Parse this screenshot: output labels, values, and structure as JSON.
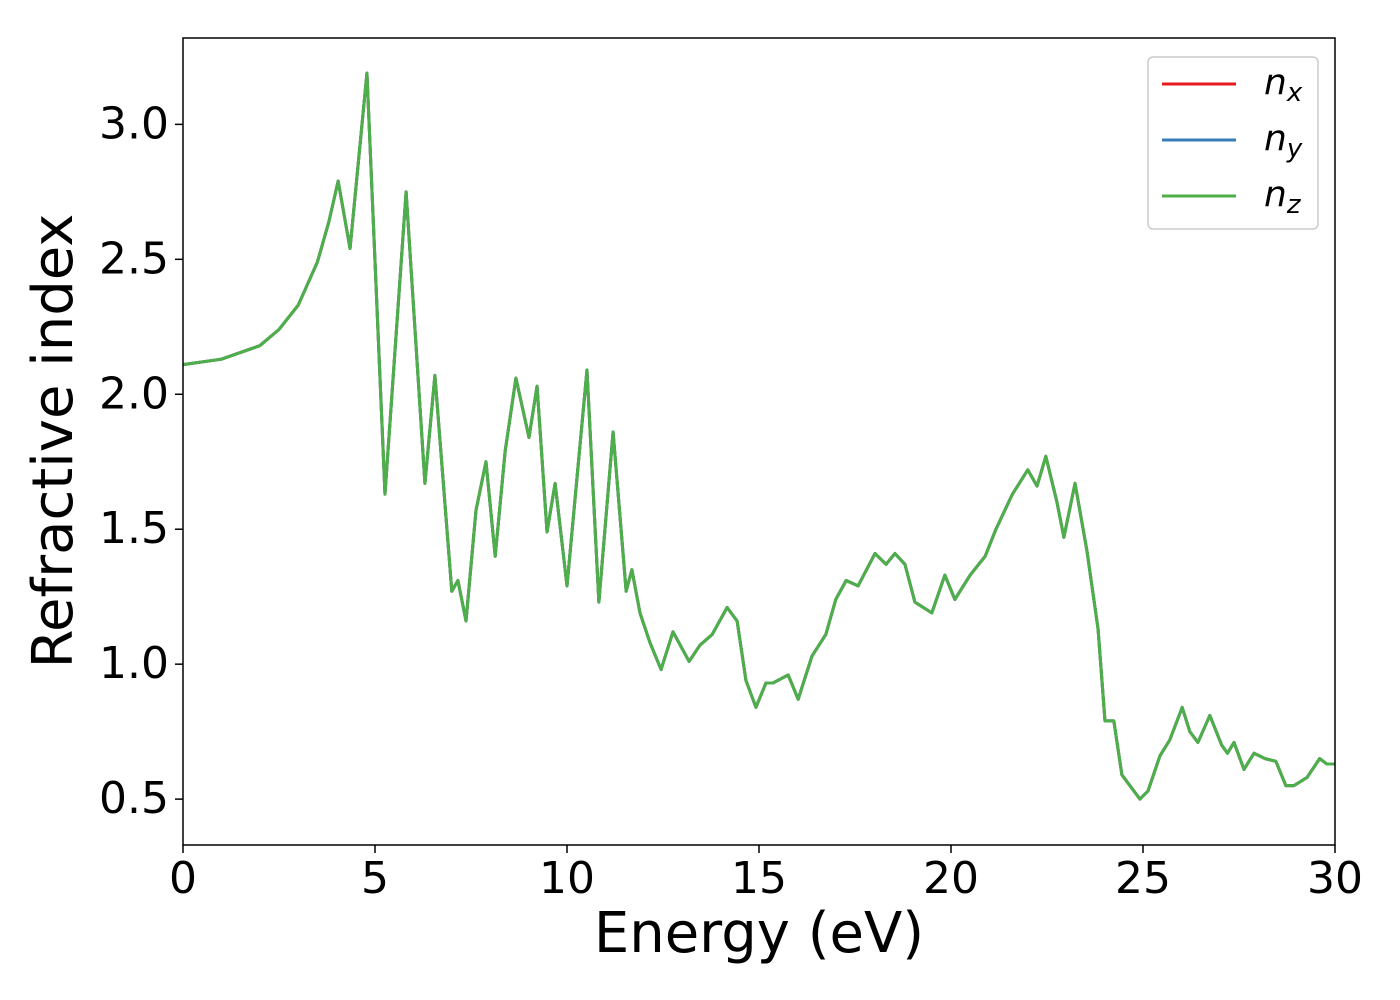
{
  "chart_data": {
    "type": "line",
    "xlabel": "Energy (eV)",
    "ylabel": "Refractive index",
    "x": [
      0,
      1,
      2,
      2.5,
      3,
      3.5,
      3.8,
      4.04,
      4.35,
      4.79,
      5.26,
      5.81,
      6.3,
      6.56,
      7.0,
      7.16,
      7.37,
      7.63,
      7.89,
      8.13,
      8.39,
      8.67,
      9.01,
      9.22,
      9.48,
      9.69,
      10.0,
      10.52,
      10.83,
      11.2,
      11.54,
      11.69,
      11.9,
      12.16,
      12.45,
      12.76,
      13.18,
      13.46,
      13.78,
      14.17,
      14.43,
      14.66,
      14.92,
      15.18,
      15.36,
      15.76,
      16.02,
      16.38,
      16.74,
      17.0,
      17.27,
      17.58,
      18.02,
      18.31,
      18.54,
      18.8,
      19.06,
      19.5,
      19.84,
      20.1,
      20.5,
      20.89,
      21.17,
      21.6,
      22.0,
      22.24,
      22.47,
      22.76,
      22.94,
      23.23,
      23.54,
      23.83,
      24.01,
      24.24,
      24.45,
      24.92,
      25.13,
      25.44,
      25.7,
      26.02,
      26.22,
      26.43,
      26.74,
      27.05,
      27.2,
      27.37,
      27.63,
      27.89,
      28.18,
      28.46,
      28.72,
      28.93,
      29.27,
      29.6,
      29.79,
      30
    ],
    "series": [
      {
        "name": "nx",
        "color": "#e41a1c",
        "values": [
          2.11,
          2.13,
          2.18,
          2.24,
          2.33,
          2.49,
          2.64,
          2.79,
          2.54,
          3.19,
          1.63,
          2.75,
          1.67,
          2.07,
          1.27,
          1.31,
          1.16,
          1.57,
          1.75,
          1.4,
          1.79,
          2.06,
          1.84,
          2.03,
          1.49,
          1.67,
          1.29,
          2.09,
          1.23,
          1.86,
          1.27,
          1.35,
          1.19,
          1.08,
          0.98,
          1.12,
          1.01,
          1.07,
          1.11,
          1.21,
          1.16,
          0.94,
          0.84,
          0.93,
          0.93,
          0.96,
          0.87,
          1.03,
          1.11,
          1.24,
          1.31,
          1.29,
          1.41,
          1.37,
          1.41,
          1.37,
          1.23,
          1.19,
          1.33,
          1.24,
          1.33,
          1.4,
          1.5,
          1.63,
          1.72,
          1.66,
          1.77,
          1.6,
          1.47,
          1.67,
          1.42,
          1.13,
          0.79,
          0.79,
          0.59,
          0.5,
          0.53,
          0.66,
          0.72,
          0.84,
          0.75,
          0.71,
          0.81,
          0.7,
          0.67,
          0.71,
          0.61,
          0.67,
          0.65,
          0.64,
          0.55,
          0.55,
          0.58,
          0.65,
          0.63,
          0.63
        ]
      },
      {
        "name": "ny",
        "color": "#377eb8",
        "values": [
          2.11,
          2.13,
          2.18,
          2.24,
          2.33,
          2.49,
          2.64,
          2.79,
          2.54,
          3.19,
          1.63,
          2.75,
          1.67,
          2.07,
          1.27,
          1.31,
          1.16,
          1.57,
          1.75,
          1.4,
          1.79,
          2.06,
          1.84,
          2.03,
          1.49,
          1.67,
          1.29,
          2.09,
          1.23,
          1.86,
          1.27,
          1.35,
          1.19,
          1.08,
          0.98,
          1.12,
          1.01,
          1.07,
          1.11,
          1.21,
          1.16,
          0.94,
          0.84,
          0.93,
          0.93,
          0.96,
          0.87,
          1.03,
          1.11,
          1.24,
          1.31,
          1.29,
          1.41,
          1.37,
          1.41,
          1.37,
          1.23,
          1.19,
          1.33,
          1.24,
          1.33,
          1.4,
          1.5,
          1.63,
          1.72,
          1.66,
          1.77,
          1.6,
          1.47,
          1.67,
          1.42,
          1.13,
          0.79,
          0.79,
          0.59,
          0.5,
          0.53,
          0.66,
          0.72,
          0.84,
          0.75,
          0.71,
          0.81,
          0.7,
          0.67,
          0.71,
          0.61,
          0.67,
          0.65,
          0.64,
          0.55,
          0.55,
          0.58,
          0.65,
          0.63,
          0.63
        ]
      },
      {
        "name": "nz",
        "color": "#4daf4a",
        "values": [
          2.11,
          2.13,
          2.18,
          2.24,
          2.33,
          2.49,
          2.64,
          2.79,
          2.54,
          3.19,
          1.63,
          2.75,
          1.67,
          2.07,
          1.27,
          1.31,
          1.16,
          1.57,
          1.75,
          1.4,
          1.79,
          2.06,
          1.84,
          2.03,
          1.49,
          1.67,
          1.29,
          2.09,
          1.23,
          1.86,
          1.27,
          1.35,
          1.19,
          1.08,
          0.98,
          1.12,
          1.01,
          1.07,
          1.11,
          1.21,
          1.16,
          0.94,
          0.84,
          0.93,
          0.93,
          0.96,
          0.87,
          1.03,
          1.11,
          1.24,
          1.31,
          1.29,
          1.41,
          1.37,
          1.41,
          1.37,
          1.23,
          1.19,
          1.33,
          1.24,
          1.33,
          1.4,
          1.5,
          1.63,
          1.72,
          1.66,
          1.77,
          1.6,
          1.47,
          1.67,
          1.42,
          1.13,
          0.79,
          0.79,
          0.59,
          0.5,
          0.53,
          0.66,
          0.72,
          0.84,
          0.75,
          0.71,
          0.81,
          0.7,
          0.67,
          0.71,
          0.61,
          0.67,
          0.65,
          0.64,
          0.55,
          0.55,
          0.58,
          0.65,
          0.63,
          0.63
        ]
      }
    ],
    "xlim": [
      0,
      30
    ],
    "xticks": [
      0,
      5,
      10,
      15,
      20,
      25,
      30
    ],
    "ylim": [
      0.33,
      3.32
    ],
    "yticks": [
      0.5,
      {
        "value": 1,
        "label": "1.0"
      },
      1.5,
      {
        "value": 2,
        "label": "2.0"
      },
      2.5,
      {
        "value": 3,
        "label": "3.0"
      }
    ],
    "grid": false,
    "legend": "upper right"
  }
}
